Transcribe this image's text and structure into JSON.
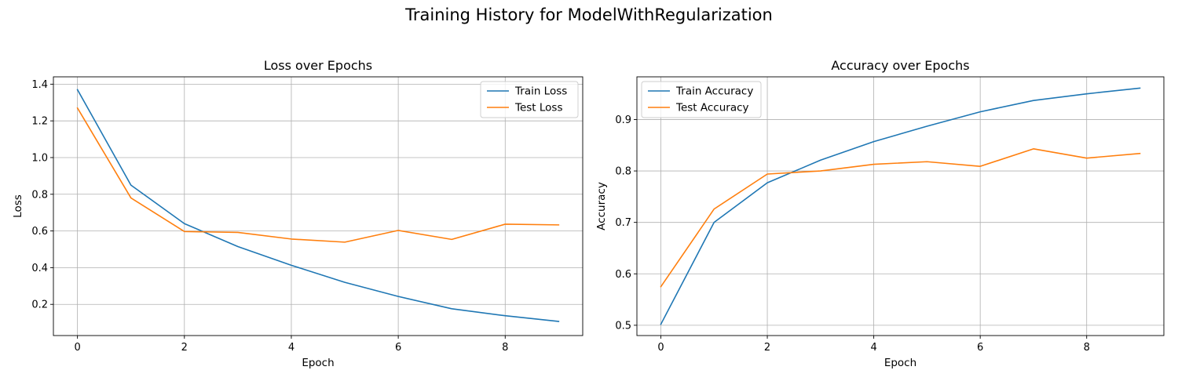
{
  "figure": {
    "title": "Training History for ModelWithRegularization"
  },
  "chart_data": [
    {
      "type": "line",
      "title": "Loss over Epochs",
      "xlabel": "Epoch",
      "ylabel": "Loss",
      "x": [
        0,
        1,
        2,
        3,
        4,
        5,
        6,
        7,
        8,
        9
      ],
      "xlim": [
        -0.45,
        9.45
      ],
      "ylim": [
        0.03,
        1.44
      ],
      "xticks": [
        0,
        2,
        4,
        6,
        8
      ],
      "yticks": [
        0.2,
        0.4,
        0.6,
        0.8,
        1.0,
        1.2,
        1.4
      ],
      "tick_decimals": 1,
      "grid": true,
      "legend_position": "top-right",
      "series": [
        {
          "name": "Train Loss",
          "color": "#1f77b4",
          "values": [
            1.37,
            0.85,
            0.64,
            0.515,
            0.413,
            0.32,
            0.243,
            0.176,
            0.138,
            0.107
          ]
        },
        {
          "name": "Test Loss",
          "color": "#ff7f0e",
          "values": [
            1.27,
            0.78,
            0.597,
            0.592,
            0.556,
            0.539,
            0.603,
            0.554,
            0.637,
            0.633
          ]
        }
      ]
    },
    {
      "type": "line",
      "title": "Accuracy over Epochs",
      "xlabel": "Epoch",
      "ylabel": "Accuracy",
      "x": [
        0,
        1,
        2,
        3,
        4,
        5,
        6,
        7,
        8,
        9
      ],
      "xlim": [
        -0.45,
        9.45
      ],
      "ylim": [
        0.48,
        0.983
      ],
      "xticks": [
        0,
        2,
        4,
        6,
        8
      ],
      "yticks": [
        0.5,
        0.6,
        0.7,
        0.8,
        0.9
      ],
      "tick_decimals": 1,
      "grid": true,
      "legend_position": "top-left",
      "series": [
        {
          "name": "Train Accuracy",
          "color": "#1f77b4",
          "values": [
            0.502,
            0.7,
            0.777,
            0.821,
            0.857,
            0.887,
            0.915,
            0.937,
            0.95,
            0.961
          ]
        },
        {
          "name": "Test Accuracy",
          "color": "#ff7f0e",
          "values": [
            0.575,
            0.726,
            0.794,
            0.8,
            0.813,
            0.818,
            0.809,
            0.843,
            0.825,
            0.834
          ]
        }
      ]
    }
  ]
}
